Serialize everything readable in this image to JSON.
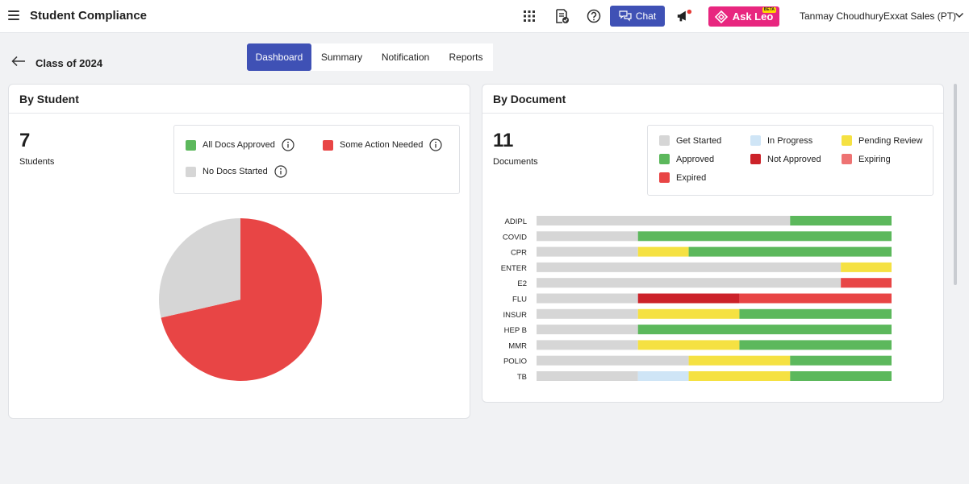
{
  "header": {
    "title": "Student Compliance",
    "chat_label": "Chat",
    "ask_leo_label": "Ask Leo",
    "beta_label": "BETA",
    "user_name": "Tanmay Choudhury",
    "org_name": "Exxat Sales (PT)"
  },
  "page": {
    "class_title": "Class of 2024",
    "tabs": [
      "Dashboard",
      "Summary",
      "Notification",
      "Reports"
    ],
    "active_tab": "Dashboard"
  },
  "by_student": {
    "title": "By Student",
    "count": "7",
    "count_label": "Students",
    "legend": [
      {
        "label": "All Docs Approved",
        "color": "#5cb85c"
      },
      {
        "label": "Some Action Needed",
        "color": "#e84545"
      },
      {
        "label": "No Docs Started",
        "color": "#d6d6d6"
      }
    ]
  },
  "by_document": {
    "title": "By Document",
    "count": "11",
    "count_label": "Documents",
    "legend": [
      {
        "label": "Get Started",
        "color": "#d6d6d6"
      },
      {
        "label": "In Progress",
        "color": "#cfe5f6"
      },
      {
        "label": "Pending Review",
        "color": "#f5e142"
      },
      {
        "label": "Approved",
        "color": "#5cb85c"
      },
      {
        "label": "Not Approved",
        "color": "#cc2229"
      },
      {
        "label": "Expiring",
        "color": "#ee7373"
      },
      {
        "label": "Expired",
        "color": "#e84545"
      }
    ]
  },
  "chart_data": [
    {
      "type": "pie",
      "title": "By Student",
      "categories": [
        "Some Action Needed",
        "No Docs Started"
      ],
      "values": [
        5,
        2
      ],
      "colors": [
        "#e84545",
        "#d6d6d6"
      ]
    },
    {
      "type": "bar",
      "orientation": "horizontal",
      "stacked": true,
      "title": "By Document",
      "categories": [
        "ADIPL",
        "COVID",
        "CPR",
        "ENTER",
        "E2",
        "FLU",
        "INSUR",
        "HEP B",
        "MMR",
        "POLIO",
        "TB"
      ],
      "series": [
        {
          "name": "Get Started",
          "color": "#d6d6d6",
          "values": [
            5,
            2,
            2,
            6,
            6,
            2,
            2,
            2,
            2,
            3,
            2
          ]
        },
        {
          "name": "In Progress",
          "color": "#cfe5f6",
          "values": [
            0,
            0,
            0,
            0,
            0,
            0,
            0,
            0,
            0,
            0,
            1
          ]
        },
        {
          "name": "Pending Review",
          "color": "#f5e142",
          "values": [
            0,
            0,
            1,
            1,
            0,
            0,
            2,
            0,
            2,
            2,
            2
          ]
        },
        {
          "name": "Approved",
          "color": "#5cb85c",
          "values": [
            2,
            5,
            4,
            0,
            0,
            0,
            3,
            5,
            3,
            2,
            2
          ]
        },
        {
          "name": "Not Approved",
          "color": "#cc2229",
          "values": [
            0,
            0,
            0,
            0,
            0,
            2,
            0,
            0,
            0,
            0,
            0
          ]
        },
        {
          "name": "Expiring",
          "color": "#ee7373",
          "values": [
            0,
            0,
            0,
            0,
            0,
            0,
            0,
            0,
            0,
            0,
            0
          ]
        },
        {
          "name": "Expired",
          "color": "#e84545",
          "values": [
            0,
            0,
            0,
            0,
            1,
            3,
            0,
            0,
            0,
            0,
            0
          ]
        }
      ],
      "xlim": [
        0,
        7
      ]
    }
  ]
}
